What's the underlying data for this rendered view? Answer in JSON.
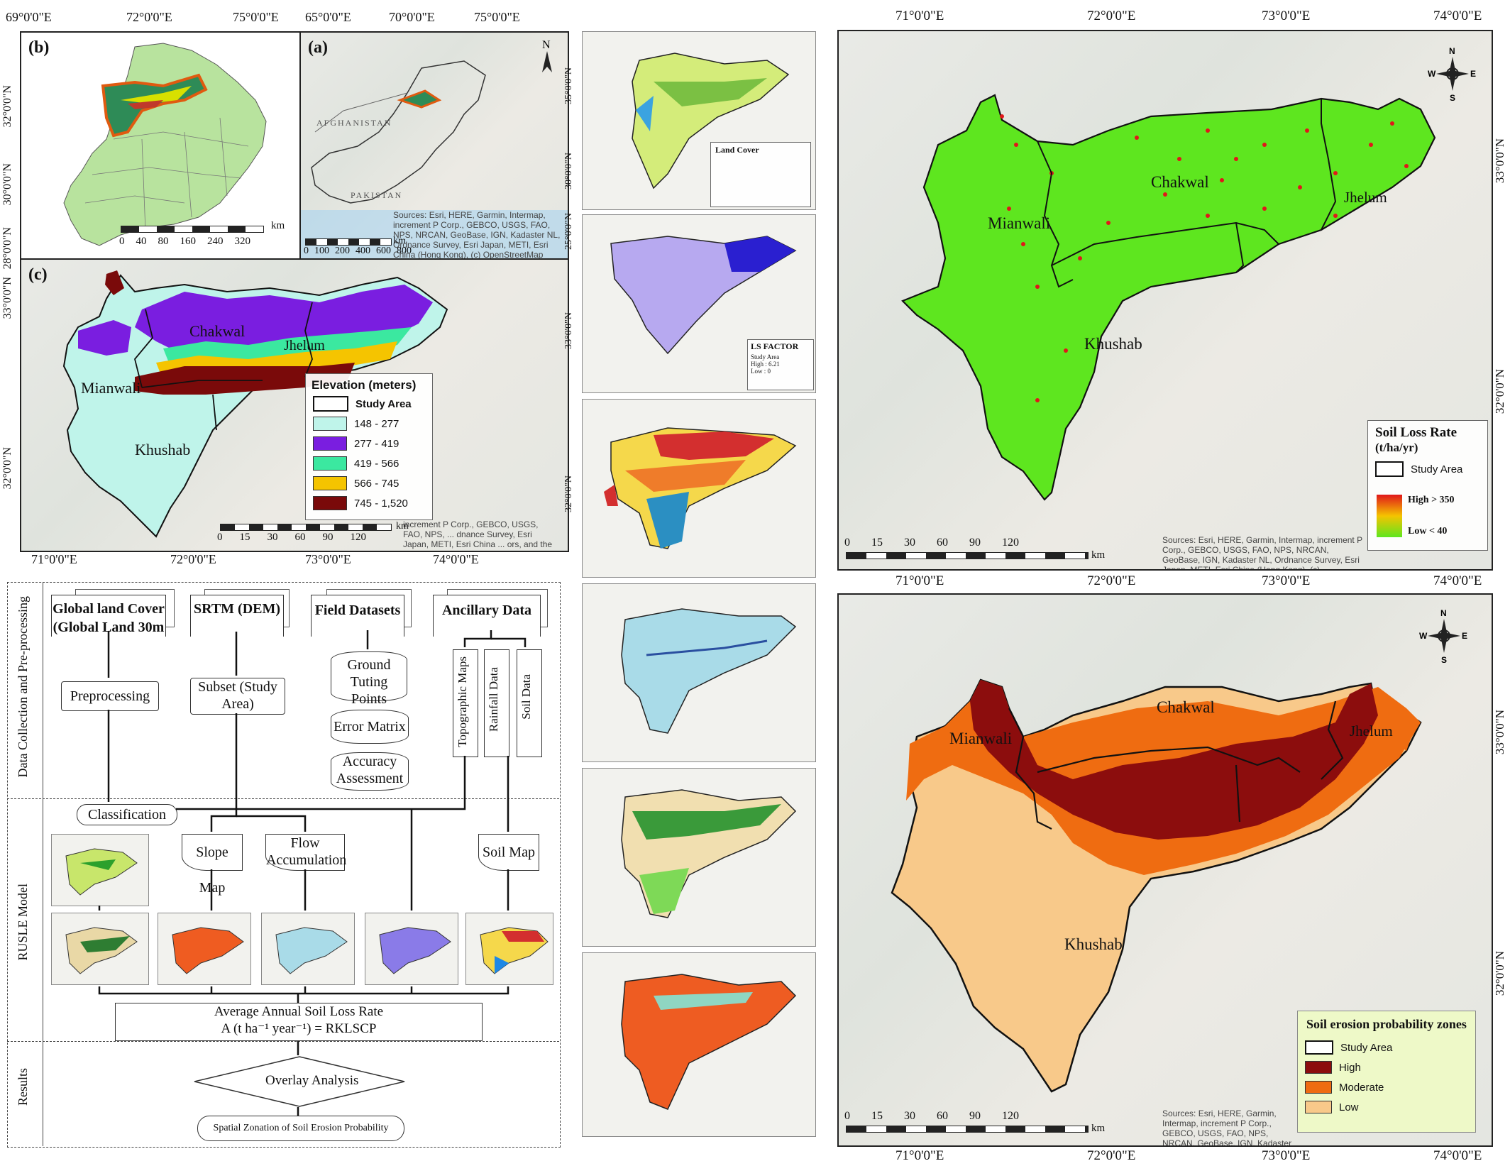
{
  "colors": {
    "elev_148_277": "#bff4ea",
    "elev_277_419": "#7a1ee0",
    "elev_419_566": "#3be8a0",
    "elev_566_745": "#f5c400",
    "elev_745_1520": "#7a0a0a",
    "soil_high": "#e0171a",
    "soil_low": "#5ee61f",
    "erosion_high": "#8c0d0d",
    "erosion_moderate": "#ef6c11",
    "erosion_low": "#f8c98a",
    "punjab": "#b8e39e"
  },
  "panel_b": {
    "label": "(b)",
    "scale": [
      "0",
      "40",
      "80",
      "160",
      "240",
      "320"
    ],
    "unit": "km"
  },
  "panel_a": {
    "label": "(a)",
    "north": "N",
    "countries": [
      "AFGHANISTAN",
      "PAKISTAN"
    ],
    "scale": [
      "0",
      "100",
      "200",
      "400",
      "600",
      "800"
    ],
    "unit": "km",
    "attribution": "Sources: Esri, HERE, Garmin, Intermap, increment P Corp., GEBCO, USGS, FAO, NPS, NRCAN, GeoBase, IGN, Kadaster NL, Ordnance Survey, Esri Japan, METI, Esri China (Hong Kong), (c) OpenStreetMap contributors, and the GIS User Community"
  },
  "top_lon": [
    "69°0'0\"E",
    "72°0'0\"E",
    "75°0'0\"E",
    "65°0'0\"E",
    "70°0'0\"E",
    "75°0'0\"E"
  ],
  "left_lat": [
    "32°0'0\"N",
    "30°0'0\"N",
    "28°0'0\"N",
    "33°0'0\"N",
    "32°0'0\"N"
  ],
  "panel_c": {
    "label": "(c)",
    "districts": [
      "Mianwali",
      "Chakwal",
      "Jhelum",
      "Khushab"
    ],
    "legend_title": "Elevation (meters)",
    "legend_items": [
      "Study Area",
      "148 - 277",
      "277 - 419",
      "419 - 566",
      "566 - 745",
      "745 - 1,520"
    ],
    "scale": [
      "0",
      "15",
      "30",
      "60",
      "90",
      "120"
    ],
    "unit": "km",
    "lon": [
      "71°0'0\"E",
      "72°0'0\"E",
      "73°0'0\"E",
      "74°0'0\"E"
    ],
    "attribution": "increment P Corp., GEBCO, USGS, FAO, NPS, ... dnance Survey, Esri Japan, METI, Esri China ... ors, and the GIS User Community"
  },
  "flowchart": {
    "sections": [
      "Data Collection and Pre-processing",
      "RUSLE Model",
      "Results"
    ],
    "inputs": [
      "Global land Cover (Global Land 30m",
      "SRTM (DEM)",
      "Field Datasets",
      "Ancillary Data"
    ],
    "preprocessing": "Preprocessing",
    "subset": "Subset (Study Area)",
    "ground": "Ground Tuting Points",
    "error_matrix": "Error Matrix",
    "accuracy": "Accuracy Assessment",
    "topo": "Topographic Maps",
    "rainfall": "Rainfall Data",
    "soil": "Soil Data",
    "classification": "Classification",
    "slope": "Slope Map",
    "flow": "Flow Accumulation",
    "soilmap": "Soil Map",
    "avg_title": "Average Annual Soil Loss Rate",
    "formula": "A (t ha⁻¹ year⁻¹) = RKLSCP",
    "overlay": "Overlay Analysis",
    "spatial": "Spatial Zonation of Soil Erosion Probability"
  },
  "middle": {
    "lat": [
      "35°0'0\"N",
      "30°0'0\"N",
      "25°0'0\"N",
      "33°0'0\"N",
      "32°0'0\"N"
    ],
    "landcover_title": "Land Cover",
    "ls_title": "LS FACTOR",
    "ls_items": [
      "Study Area",
      "High : 6.21",
      "Low : 0"
    ]
  },
  "right_top": {
    "lon": [
      "71°0'0\"E",
      "72°0'0\"E",
      "73°0'0\"E",
      "74°0'0\"E"
    ],
    "lat": [
      "33°0'0\"N",
      "32°0'0\"N"
    ],
    "districts": [
      "Mianwali",
      "Chakwal",
      "Jhelum",
      "Khushab"
    ],
    "legend_title_1": "Soil Loss Rate",
    "legend_title_2": "(t/ha/yr)",
    "legend_study": "Study Area",
    "legend_high": "High > 350",
    "legend_low": "Low < 40",
    "scale": [
      "0",
      "15",
      "30",
      "60",
      "90",
      "120"
    ],
    "unit": "km",
    "attribution": "Sources: Esri, HERE, Garmin, Intermap, increment P Corp., GEBCO, USGS, FAO, NPS, NRCAN, GeoBase, IGN, Kadaster NL, Ordnance Survey, Esri Japan, METI, Esri China (Hong Kong), (c) OpenStreetMap contributors, and the GIS User Community"
  },
  "right_bottom": {
    "lon": [
      "71°0'0\"E",
      "72°0'0\"E",
      "73°0'0\"E",
      "74°0'0\"E"
    ],
    "lat": [
      "33°0'0\"N",
      "32°0'0\"N"
    ],
    "districts": [
      "Mianwali",
      "Chakwal",
      "Jhelum",
      "Khushab"
    ],
    "legend_title": "Soil erosion probability zones",
    "legend_items": [
      "Study Area",
      "High",
      "Moderate",
      "Low"
    ],
    "scale": [
      "0",
      "15",
      "30",
      "60",
      "90",
      "120"
    ],
    "unit": "km",
    "attribution": "Sources: Esri, HERE, Garmin, Intermap, increment P Corp., GEBCO, USGS, FAO, NPS, NRCAN, GeoBase, IGN, Kadaster NL, Ordnance Survey, Esri Japan, METI, Esri China (Hong Kong), (c) OpenStreetMap contributors, and the GIS User Community"
  },
  "compass": {
    "n": "N",
    "s": "S",
    "e": "E",
    "w": "W"
  }
}
